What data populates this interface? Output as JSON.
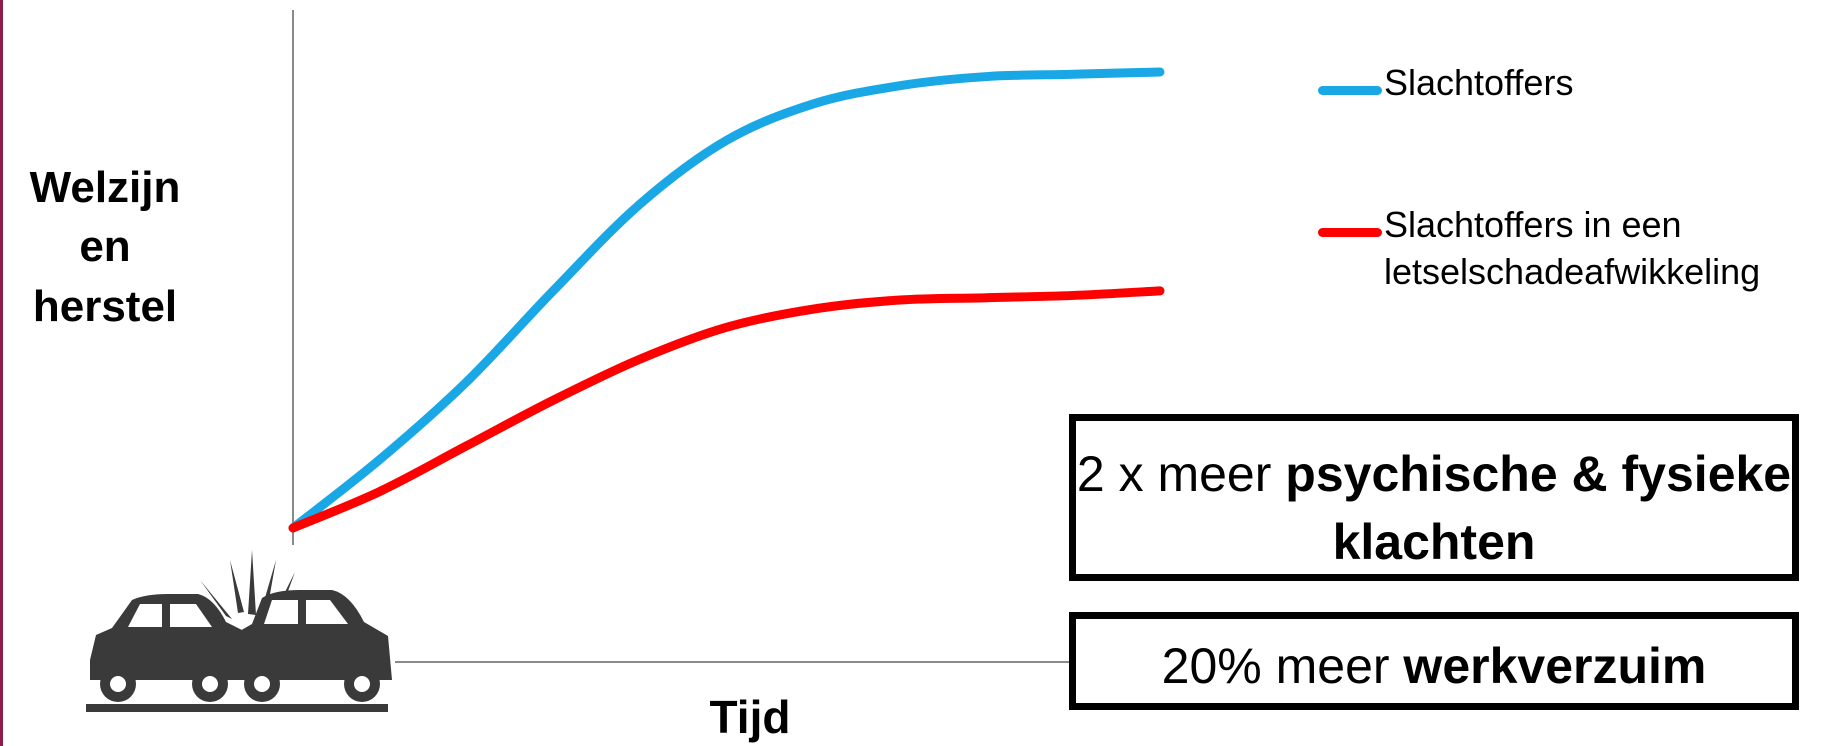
{
  "chart_data": {
    "type": "line",
    "title": "",
    "ylabel_lines": [
      "Welzijn",
      "en",
      "herstel"
    ],
    "xlabel": "Tijd",
    "series": [
      {
        "name": "Slachtoffers",
        "color": "#1aa7e6",
        "x": [
          0,
          0.1,
          0.2,
          0.3,
          0.4,
          0.5,
          0.6,
          0.7,
          0.8,
          0.9,
          1.0
        ],
        "y": [
          0,
          0.15,
          0.32,
          0.52,
          0.71,
          0.85,
          0.93,
          0.97,
          0.99,
          0.995,
          1.0
        ]
      },
      {
        "name": "Slachtoffers in een letselschadeafwikkeling",
        "color": "#ff0000",
        "x": [
          0,
          0.1,
          0.2,
          0.3,
          0.4,
          0.5,
          0.6,
          0.7,
          0.8,
          0.9,
          1.0
        ],
        "y": [
          0,
          0.08,
          0.18,
          0.28,
          0.37,
          0.44,
          0.48,
          0.5,
          0.505,
          0.51,
          0.52
        ]
      }
    ],
    "grid": false,
    "legend_position": "right"
  },
  "legend": [
    {
      "lines": [
        "Slachtoffers"
      ],
      "color": "#1aa7e6"
    },
    {
      "lines": [
        "Slachtoffers in een",
        "letselschadeafwikkeling"
      ],
      "color": "#ff0000"
    }
  ],
  "callouts": [
    {
      "plain": "2 x meer ",
      "bold": "psychische & fysieke klachten"
    },
    {
      "plain": "20% meer ",
      "bold": "werkverzuim"
    }
  ],
  "icons": {
    "crash": "car-crash-icon"
  }
}
